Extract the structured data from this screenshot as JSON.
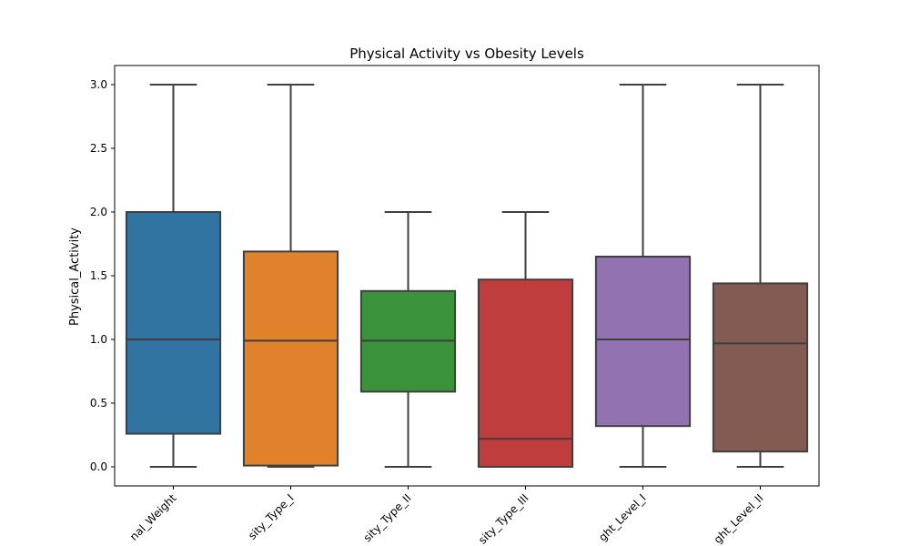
{
  "chart_data": {
    "type": "box",
    "title": "Physical Activity vs Obesity Levels",
    "xlabel": "",
    "ylabel": "Physical_Activity",
    "ylim": [
      -0.15,
      3.15
    ],
    "yticks": [
      "0.0",
      "0.5",
      "1.0",
      "1.5",
      "2.0",
      "2.5",
      "3.0"
    ],
    "grid": false,
    "categories": [
      "Normal_Weight",
      "Obesity_Type_I",
      "Obesity_Type_II",
      "Obesity_Type_III",
      "Overweight_Level_I",
      "Overweight_Level_II"
    ],
    "tick_labels_visible": [
      "nal_Weight",
      "sity_Type_I",
      "sity_Type_II",
      "sity_Type_III",
      "ght_Level_I",
      "ght_Level_II"
    ],
    "boxes": [
      {
        "q1": 0.26,
        "median": 1.0,
        "q3": 2.0,
        "whisker_low": 0.0,
        "whisker_high": 3.0,
        "color": "#3274a1"
      },
      {
        "q1": 0.01,
        "median": 0.99,
        "q3": 1.69,
        "whisker_low": 0.0,
        "whisker_high": 3.0,
        "color": "#e1812c"
      },
      {
        "q1": 0.59,
        "median": 0.99,
        "q3": 1.38,
        "whisker_low": 0.0,
        "whisker_high": 2.0,
        "color": "#3a923a"
      },
      {
        "q1": 0.0,
        "median": 0.22,
        "q3": 1.47,
        "whisker_low": 0.0,
        "whisker_high": 2.0,
        "color": "#c03d3e"
      },
      {
        "q1": 0.32,
        "median": 1.0,
        "q3": 1.65,
        "whisker_low": 0.0,
        "whisker_high": 3.0,
        "color": "#9372b2"
      },
      {
        "q1": 0.12,
        "median": 0.97,
        "q3": 1.44,
        "whisker_low": 0.0,
        "whisker_high": 3.0,
        "color": "#845b53"
      }
    ]
  }
}
